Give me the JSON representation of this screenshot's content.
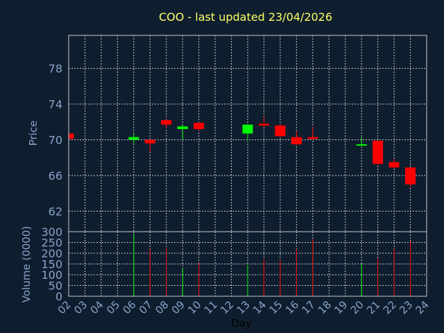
{
  "title": "COO - last updated 23/04/2026",
  "price_axis_label": "Price",
  "volume_axis_label": "Volume (0000)",
  "x_axis_label": "Day",
  "colors": {
    "background": "#0f1e2f",
    "title": "#ffff66",
    "axis_text": "#8aa3c8",
    "up": "#00ff00",
    "down": "#ff0000",
    "grid": "#c8c8c8"
  },
  "chart_data": {
    "type": "candlestick",
    "x": [
      "02",
      "03",
      "04",
      "05",
      "06",
      "07",
      "08",
      "09",
      "10",
      "11",
      "12",
      "13",
      "14",
      "15",
      "16",
      "17",
      "18",
      "19",
      "20",
      "21",
      "22",
      "23",
      "24"
    ],
    "price_ylim": [
      59.7,
      81.7
    ],
    "price_yticks": [
      62,
      66,
      70,
      74,
      78
    ],
    "volume_ylim": [
      0,
      300
    ],
    "volume_yticks": [
      0,
      50,
      100,
      150,
      200,
      250,
      300
    ],
    "grid": true,
    "candles": [
      {
        "day": "02",
        "open": 70.7,
        "high": 70.7,
        "low": 70.1,
        "close": 70.1,
        "volume": 0
      },
      {
        "day": "06",
        "open": 70.0,
        "high": 70.7,
        "low": 69.6,
        "close": 70.3,
        "volume": 290
      },
      {
        "day": "07",
        "open": 70.0,
        "high": 70.0,
        "low": 68.6,
        "close": 69.6,
        "volume": 220
      },
      {
        "day": "08",
        "open": 72.2,
        "high": 72.3,
        "low": 71.3,
        "close": 71.7,
        "volume": 225
      },
      {
        "day": "09",
        "open": 71.2,
        "high": 71.7,
        "low": 70.0,
        "close": 71.5,
        "volume": 130
      },
      {
        "day": "10",
        "open": 71.9,
        "high": 72.0,
        "low": 71.0,
        "close": 71.2,
        "volume": 155
      },
      {
        "day": "13",
        "open": 70.7,
        "high": 71.8,
        "low": 70.0,
        "close": 71.7,
        "volume": 145
      },
      {
        "day": "14",
        "open": 71.8,
        "high": 72.6,
        "low": 71.4,
        "close": 71.6,
        "volume": 170
      },
      {
        "day": "15",
        "open": 71.6,
        "high": 71.7,
        "low": 70.3,
        "close": 70.4,
        "volume": 170
      },
      {
        "day": "16",
        "open": 70.3,
        "high": 71.0,
        "low": 69.4,
        "close": 69.5,
        "volume": 220
      },
      {
        "day": "17",
        "open": 70.3,
        "high": 71.4,
        "low": 70.0,
        "close": 70.1,
        "volume": 265
      },
      {
        "day": "20",
        "open": 69.4,
        "high": 70.3,
        "low": 69.4,
        "close": 69.5,
        "volume": 150
      },
      {
        "day": "21",
        "open": 69.9,
        "high": 69.9,
        "low": 67.2,
        "close": 67.3,
        "volume": 175
      },
      {
        "day": "22",
        "open": 67.5,
        "high": 67.9,
        "low": 66.8,
        "close": 66.9,
        "volume": 220
      },
      {
        "day": "23",
        "open": 66.9,
        "high": 66.9,
        "low": 64.6,
        "close": 65.0,
        "volume": 255
      }
    ]
  }
}
